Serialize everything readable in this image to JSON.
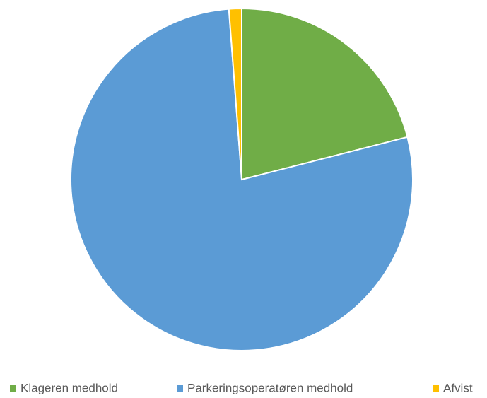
{
  "chart_data": {
    "type": "pie",
    "categories": [
      "Klageren medhold",
      "Parkeringsoperatøren medhold",
      "Afvist"
    ],
    "values": [
      21,
      77.8,
      1.2
    ],
    "colors": [
      "#70ad47",
      "#5b9bd5",
      "#ffc000"
    ],
    "legend": "bottom"
  }
}
